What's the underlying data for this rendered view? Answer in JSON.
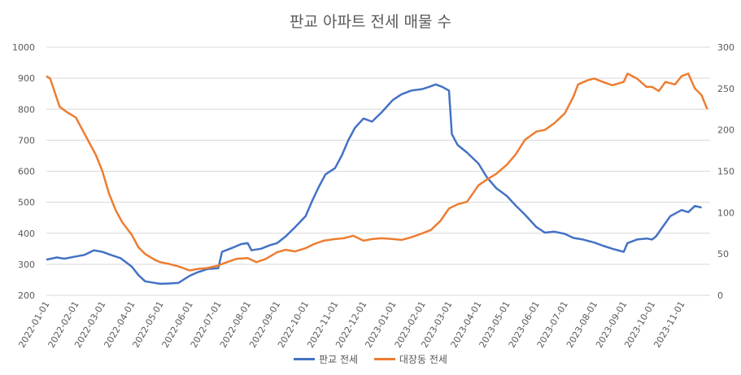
{
  "chart_data": {
    "type": "line",
    "title": "판교 아파트 전세 매물 수",
    "x_ticks": [
      "2022-01-01",
      "2022-02-01",
      "2022-03-01",
      "2022-04-01",
      "2022-05-01",
      "2022-06-01",
      "2022-07-01",
      "2022-08-01",
      "2022-09-01",
      "2022-10-01",
      "2022-11-01",
      "2022-12-01",
      "2023-01-01",
      "2023-02-01",
      "2023-03-01",
      "2023-04-01",
      "2023-05-01",
      "2023-06-01",
      "2023-07-01",
      "2023-08-01",
      "2023-09-01",
      "2023-10-01",
      "2023-11-01"
    ],
    "y_left": {
      "min": 200,
      "max": 1000,
      "ticks": [
        200,
        300,
        400,
        500,
        600,
        700,
        800,
        900,
        1000
      ]
    },
    "y_right": {
      "min": 0,
      "max": 300,
      "ticks": [
        0,
        50,
        100,
        150,
        200,
        250,
        300
      ]
    },
    "grid": true,
    "legend_position": "bottom",
    "series": [
      {
        "name": "판교 전세",
        "axis": "left",
        "color": "#4472C4",
        "points": [
          [
            "2022-01-01",
            315
          ],
          [
            "2022-01-06",
            318
          ],
          [
            "2022-01-12",
            322
          ],
          [
            "2022-01-20",
            318
          ],
          [
            "2022-02-01",
            325
          ],
          [
            "2022-02-10",
            330
          ],
          [
            "2022-02-20",
            345
          ],
          [
            "2022-03-01",
            340
          ],
          [
            "2022-03-10",
            330
          ],
          [
            "2022-03-20",
            320
          ],
          [
            "2022-04-01",
            292
          ],
          [
            "2022-04-08",
            265
          ],
          [
            "2022-04-15",
            245
          ],
          [
            "2022-04-25",
            240
          ],
          [
            "2022-05-01",
            237
          ],
          [
            "2022-05-10",
            238
          ],
          [
            "2022-05-20",
            240
          ],
          [
            "2022-06-01",
            263
          ],
          [
            "2022-06-10",
            275
          ],
          [
            "2022-06-20",
            285
          ],
          [
            "2022-07-01",
            287
          ],
          [
            "2022-07-05",
            340
          ],
          [
            "2022-07-15",
            352
          ],
          [
            "2022-07-25",
            365
          ],
          [
            "2022-08-01",
            368
          ],
          [
            "2022-08-05",
            345
          ],
          [
            "2022-08-15",
            350
          ],
          [
            "2022-08-25",
            362
          ],
          [
            "2022-09-01",
            368
          ],
          [
            "2022-09-10",
            390
          ],
          [
            "2022-09-20",
            420
          ],
          [
            "2022-10-01",
            455
          ],
          [
            "2022-10-08",
            505
          ],
          [
            "2022-10-15",
            550
          ],
          [
            "2022-10-22",
            590
          ],
          [
            "2022-11-01",
            610
          ],
          [
            "2022-11-08",
            650
          ],
          [
            "2022-11-15",
            700
          ],
          [
            "2022-11-22",
            740
          ],
          [
            "2022-12-01",
            770
          ],
          [
            "2022-12-10",
            760
          ],
          [
            "2022-12-20",
            790
          ],
          [
            "2023-01-01",
            830
          ],
          [
            "2023-01-10",
            848
          ],
          [
            "2023-01-20",
            860
          ],
          [
            "2023-02-01",
            865
          ],
          [
            "2023-02-08",
            872
          ],
          [
            "2023-02-15",
            880
          ],
          [
            "2023-02-22",
            872
          ],
          [
            "2023-03-01",
            860
          ],
          [
            "2023-03-04",
            720
          ],
          [
            "2023-03-10",
            685
          ],
          [
            "2023-03-20",
            660
          ],
          [
            "2023-04-01",
            625
          ],
          [
            "2023-04-10",
            580
          ],
          [
            "2023-04-20",
            545
          ],
          [
            "2023-05-01",
            520
          ],
          [
            "2023-05-10",
            490
          ],
          [
            "2023-05-20",
            460
          ],
          [
            "2023-06-01",
            420
          ],
          [
            "2023-06-10",
            402
          ],
          [
            "2023-06-20",
            405
          ],
          [
            "2023-07-01",
            398
          ],
          [
            "2023-07-10",
            385
          ],
          [
            "2023-07-20",
            380
          ],
          [
            "2023-08-01",
            370
          ],
          [
            "2023-08-10",
            360
          ],
          [
            "2023-08-20",
            350
          ],
          [
            "2023-09-01",
            340
          ],
          [
            "2023-09-05",
            368
          ],
          [
            "2023-09-15",
            380
          ],
          [
            "2023-09-25",
            383
          ],
          [
            "2023-10-01",
            380
          ],
          [
            "2023-10-05",
            390
          ],
          [
            "2023-10-12",
            420
          ],
          [
            "2023-10-20",
            455
          ],
          [
            "2023-11-01",
            475
          ],
          [
            "2023-11-08",
            468
          ],
          [
            "2023-11-15",
            488
          ],
          [
            "2023-11-22",
            483
          ]
        ]
      },
      {
        "name": "대장동 전세",
        "axis": "right",
        "color": "#ED7D31",
        "points": [
          [
            "2022-01-01",
            265
          ],
          [
            "2022-01-05",
            262
          ],
          [
            "2022-01-10",
            245
          ],
          [
            "2022-01-15",
            228
          ],
          [
            "2022-01-22",
            222
          ],
          [
            "2022-02-01",
            215
          ],
          [
            "2022-02-08",
            200
          ],
          [
            "2022-02-15",
            185
          ],
          [
            "2022-02-22",
            170
          ],
          [
            "2022-03-01",
            150
          ],
          [
            "2022-03-08",
            123
          ],
          [
            "2022-03-15",
            103
          ],
          [
            "2022-03-22",
            88
          ],
          [
            "2022-04-01",
            73
          ],
          [
            "2022-04-08",
            58
          ],
          [
            "2022-04-15",
            50
          ],
          [
            "2022-04-25",
            43
          ],
          [
            "2022-05-01",
            40
          ],
          [
            "2022-05-10",
            38
          ],
          [
            "2022-05-20",
            35
          ],
          [
            "2022-06-01",
            30
          ],
          [
            "2022-06-10",
            32
          ],
          [
            "2022-06-20",
            33
          ],
          [
            "2022-07-01",
            36
          ],
          [
            "2022-07-10",
            40
          ],
          [
            "2022-07-20",
            44
          ],
          [
            "2022-08-01",
            45
          ],
          [
            "2022-08-10",
            40
          ],
          [
            "2022-08-20",
            44
          ],
          [
            "2022-09-01",
            52
          ],
          [
            "2022-09-10",
            55
          ],
          [
            "2022-09-20",
            53
          ],
          [
            "2022-10-01",
            57
          ],
          [
            "2022-10-10",
            62
          ],
          [
            "2022-10-20",
            66
          ],
          [
            "2022-11-01",
            68
          ],
          [
            "2022-11-10",
            69
          ],
          [
            "2022-11-20",
            72
          ],
          [
            "2022-12-01",
            66
          ],
          [
            "2022-12-10",
            68
          ],
          [
            "2022-12-20",
            69
          ],
          [
            "2023-01-01",
            68
          ],
          [
            "2023-01-10",
            67
          ],
          [
            "2023-01-20",
            70
          ],
          [
            "2023-02-01",
            75
          ],
          [
            "2023-02-10",
            79
          ],
          [
            "2023-02-20",
            90
          ],
          [
            "2023-03-01",
            105
          ],
          [
            "2023-03-10",
            110
          ],
          [
            "2023-03-20",
            113
          ],
          [
            "2023-04-01",
            133
          ],
          [
            "2023-04-10",
            140
          ],
          [
            "2023-04-20",
            147
          ],
          [
            "2023-05-01",
            158
          ],
          [
            "2023-05-10",
            170
          ],
          [
            "2023-05-20",
            188
          ],
          [
            "2023-06-01",
            198
          ],
          [
            "2023-06-10",
            200
          ],
          [
            "2023-06-20",
            208
          ],
          [
            "2023-07-01",
            220
          ],
          [
            "2023-07-10",
            240
          ],
          [
            "2023-07-15",
            255
          ],
          [
            "2023-07-25",
            260
          ],
          [
            "2023-08-01",
            262
          ],
          [
            "2023-08-10",
            258
          ],
          [
            "2023-08-20",
            254
          ],
          [
            "2023-09-01",
            258
          ],
          [
            "2023-09-05",
            268
          ],
          [
            "2023-09-15",
            262
          ],
          [
            "2023-09-25",
            252
          ],
          [
            "2023-10-01",
            252
          ],
          [
            "2023-10-08",
            247
          ],
          [
            "2023-10-15",
            258
          ],
          [
            "2023-10-25",
            255
          ],
          [
            "2023-11-01",
            265
          ],
          [
            "2023-11-08",
            268
          ],
          [
            "2023-11-15",
            250
          ],
          [
            "2023-11-22",
            242
          ],
          [
            "2023-11-28",
            225
          ]
        ]
      }
    ]
  }
}
